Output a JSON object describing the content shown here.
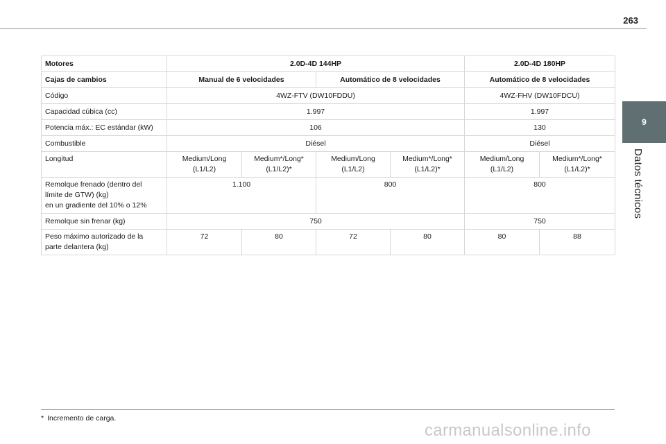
{
  "page": {
    "number": "263",
    "chapter_number": "9",
    "chapter_title": "Datos técnicos"
  },
  "table": {
    "header": {
      "label": "Motores",
      "engine_a": "2.0D-4D 144HP",
      "engine_b": "2.0D-4D 180HP"
    },
    "gearbox": {
      "label": "Cajas de cambios",
      "a_manual": "Manual de 6 velocidades",
      "a_auto": "Automático de 8 velocidades",
      "b_auto": "Automático de 8 velocidades"
    },
    "code": {
      "label": "Código",
      "a": "4WZ-FTV (DW10FDDU)",
      "b": "4WZ-FHV (DW10FDCU)"
    },
    "displacement": {
      "label": "Capacidad cúbica (cc)",
      "a": "1.997",
      "b": "1.997"
    },
    "power": {
      "label": "Potencia máx.: EC estándar (kW)",
      "a": "106",
      "b": "130"
    },
    "fuel": {
      "label": "Combustible",
      "a": "Diésel",
      "b": "Diésel"
    },
    "length": {
      "label": "Longitud",
      "values": [
        {
          "l1": "Medium/Long",
          "l2": "(L1/L2)"
        },
        {
          "l1": "Medium*/Long*",
          "l2": "(L1/L2)*"
        },
        {
          "l1": "Medium/Long",
          "l2": "(L1/L2)"
        },
        {
          "l1": "Medium*/Long*",
          "l2": "(L1/L2)*"
        },
        {
          "l1": "Medium/Long",
          "l2": "(L1/L2)"
        },
        {
          "l1": "Medium*/Long*",
          "l2": "(L1/L2)*"
        }
      ]
    },
    "braked_trailer": {
      "label_lines": [
        "Remolque frenado (dentro del",
        "límite de GTW) (kg)",
        "en un gradiente del 10% o 12%"
      ],
      "a_manual": "1.100",
      "a_auto": "800",
      "b": "800"
    },
    "unbraked_trailer": {
      "label": "Remolque sin frenar (kg)",
      "a": "750",
      "b": "750"
    },
    "nose_weight": {
      "label_lines": [
        "Peso máximo autorizado de la",
        "parte delantera (kg)"
      ],
      "values": [
        "72",
        "80",
        "72",
        "80",
        "80",
        "88"
      ]
    }
  },
  "footnote": {
    "mark": "*",
    "text": "Incremento de carga."
  },
  "watermark": "carmanualsonline.info"
}
